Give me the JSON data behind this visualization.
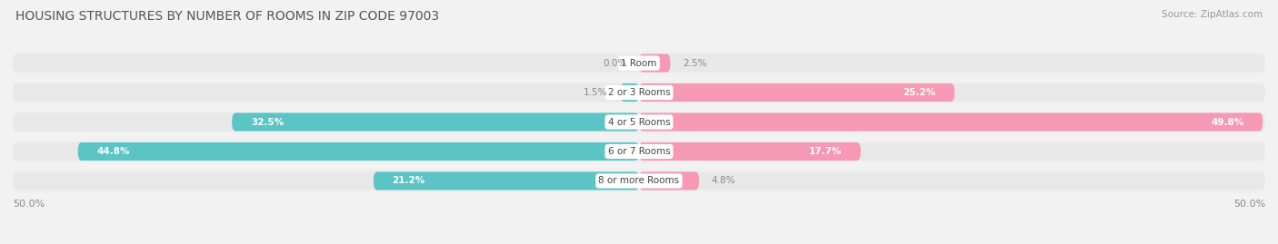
{
  "title": "HOUSING STRUCTURES BY NUMBER OF ROOMS IN ZIP CODE 97003",
  "source": "Source: ZipAtlas.com",
  "categories": [
    "1 Room",
    "2 or 3 Rooms",
    "4 or 5 Rooms",
    "6 or 7 Rooms",
    "8 or more Rooms"
  ],
  "owner_values": [
    0.0,
    1.5,
    32.5,
    44.8,
    21.2
  ],
  "renter_values": [
    2.5,
    25.2,
    49.8,
    17.7,
    4.8
  ],
  "owner_color": "#5BC4C4",
  "renter_color": "#F599B4",
  "bar_bg_color": "#E8E8E8",
  "row_bg_color": "#F0F0F0",
  "axis_limit": 50.0,
  "bar_height": 0.62,
  "title_fontsize": 10,
  "source_fontsize": 7.5,
  "label_fontsize": 7.5,
  "cat_fontsize": 7.5,
  "legend_fontsize": 8,
  "axis_label_fontsize": 8,
  "background_color": "#F2F2F2",
  "inside_label_threshold_owner": 10.0,
  "inside_label_threshold_renter": 10.0
}
